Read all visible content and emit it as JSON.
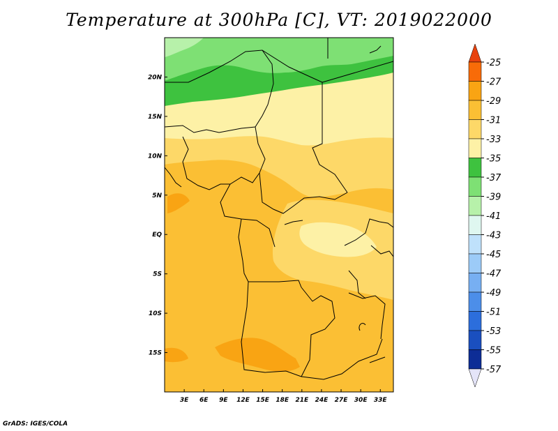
{
  "title": "Temperature at 300hPa [C], VT: 2019022000",
  "credit": "GrADS: IGES/COLA",
  "map": {
    "lon_range": [
      0,
      35
    ],
    "lat_range": [
      -20,
      25
    ],
    "lon_ticks": [
      {
        "value": 3,
        "label": "3E"
      },
      {
        "value": 6,
        "label": "6E"
      },
      {
        "value": 9,
        "label": "9E"
      },
      {
        "value": 12,
        "label": "12E"
      },
      {
        "value": 15,
        "label": "15E"
      },
      {
        "value": 18,
        "label": "18E"
      },
      {
        "value": 21,
        "label": "21E"
      },
      {
        "value": 24,
        "label": "24E"
      },
      {
        "value": 27,
        "label": "27E"
      },
      {
        "value": 30,
        "label": "30E"
      },
      {
        "value": 33,
        "label": "33E"
      }
    ],
    "lat_ticks": [
      {
        "value": 20,
        "label": "20N"
      },
      {
        "value": 15,
        "label": "15N"
      },
      {
        "value": 10,
        "label": "10N"
      },
      {
        "value": 5,
        "label": "5N"
      },
      {
        "value": 0,
        "label": "EQ"
      },
      {
        "value": -5,
        "label": "5S"
      },
      {
        "value": -10,
        "label": "10S"
      },
      {
        "value": -15,
        "label": "15S"
      }
    ]
  },
  "colorbar": {
    "labels": [
      "-25",
      "-27",
      "-29",
      "-31",
      "-33",
      "-35",
      "-37",
      "-39",
      "-41",
      "-43",
      "-45",
      "-47",
      "-49",
      "-51",
      "-53",
      "-55",
      "-57"
    ],
    "top_color": "#e8420e",
    "colors": [
      "#f86b08",
      "#f9a413",
      "#fbbf34",
      "#fdd868",
      "#fdf1a6",
      "#3ec23f",
      "#7ee074",
      "#b7f1aa",
      "#dff7f0",
      "#bfe1fb",
      "#9ccbf8",
      "#77aff2",
      "#4c8ee9",
      "#2c6edc",
      "#1a4fbf",
      "#0d2d96"
    ],
    "bottom_color": "#e4e4f8"
  }
}
